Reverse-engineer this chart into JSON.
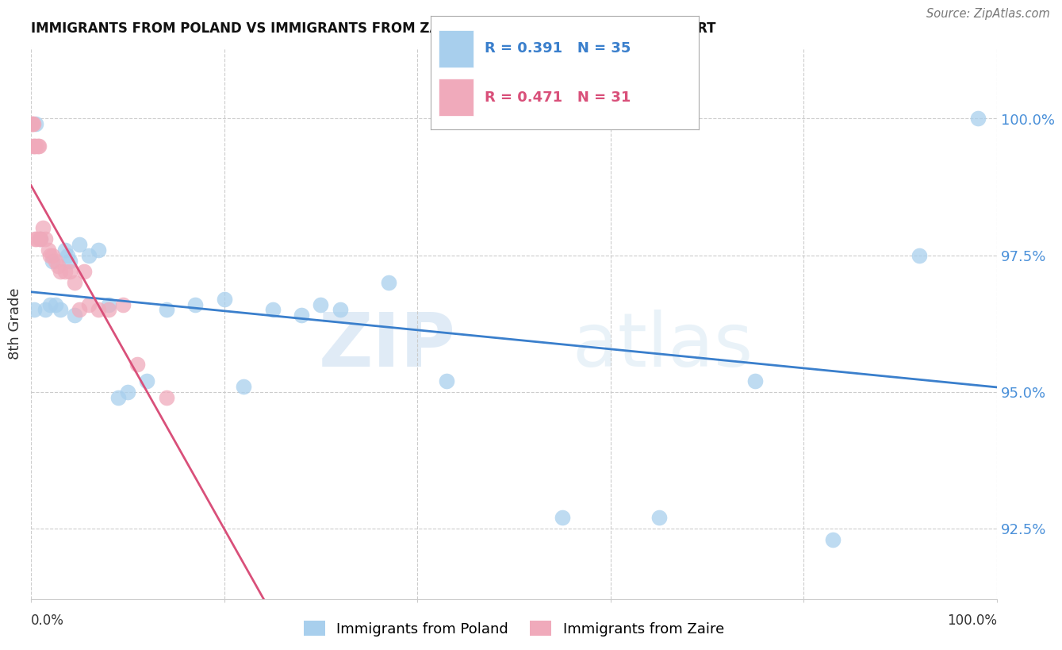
{
  "title": "IMMIGRANTS FROM POLAND VS IMMIGRANTS FROM ZAIRE 8TH GRADE CORRELATION CHART",
  "source": "Source: ZipAtlas.com",
  "ylabel": "8th Grade",
  "yticks": [
    92.5,
    95.0,
    97.5,
    100.0
  ],
  "ytick_labels": [
    "92.5%",
    "95.0%",
    "97.5%",
    "100.0%"
  ],
  "xlim": [
    0.0,
    100.0
  ],
  "ylim": [
    91.2,
    101.3
  ],
  "color_poland": "#A8CFED",
  "color_zaire": "#F0AABB",
  "trendline_poland": "#3A7FCC",
  "trendline_zaire": "#D9507A",
  "watermark_zip": "ZIP",
  "watermark_atlas": "atlas",
  "poland_x": [
    0.3,
    0.5,
    1.0,
    1.5,
    2.0,
    2.2,
    2.5,
    3.0,
    3.5,
    3.8,
    4.0,
    4.5,
    5.0,
    6.0,
    7.0,
    8.0,
    9.0,
    10.0,
    12.0,
    14.0,
    17.0,
    20.0,
    22.0,
    25.0,
    28.0,
    30.0,
    32.0,
    37.0,
    43.0,
    55.0,
    65.0,
    75.0,
    83.0,
    92.0,
    98.0
  ],
  "poland_y": [
    96.5,
    99.9,
    97.8,
    96.5,
    96.6,
    97.4,
    96.6,
    96.5,
    97.6,
    97.5,
    97.4,
    96.4,
    97.7,
    97.5,
    97.6,
    96.6,
    94.9,
    95.0,
    95.2,
    96.5,
    96.6,
    96.7,
    95.1,
    96.5,
    96.4,
    96.6,
    96.5,
    97.0,
    95.2,
    92.7,
    92.7,
    95.2,
    92.3,
    97.5,
    100.0
  ],
  "zaire_x": [
    0.1,
    0.15,
    0.2,
    0.25,
    0.3,
    0.4,
    0.5,
    0.6,
    0.7,
    0.8,
    0.9,
    1.0,
    1.2,
    1.5,
    1.8,
    2.0,
    2.2,
    2.5,
    2.8,
    3.0,
    3.5,
    4.0,
    4.5,
    5.0,
    5.5,
    6.0,
    7.0,
    8.0,
    9.5,
    11.0,
    14.0
  ],
  "zaire_y": [
    99.9,
    99.9,
    99.9,
    99.5,
    99.5,
    97.8,
    99.5,
    97.8,
    99.5,
    99.5,
    97.8,
    97.8,
    98.0,
    97.8,
    97.6,
    97.5,
    97.5,
    97.4,
    97.3,
    97.2,
    97.2,
    97.2,
    97.0,
    96.5,
    97.2,
    96.6,
    96.5,
    96.5,
    96.6,
    95.5,
    94.9
  ]
}
